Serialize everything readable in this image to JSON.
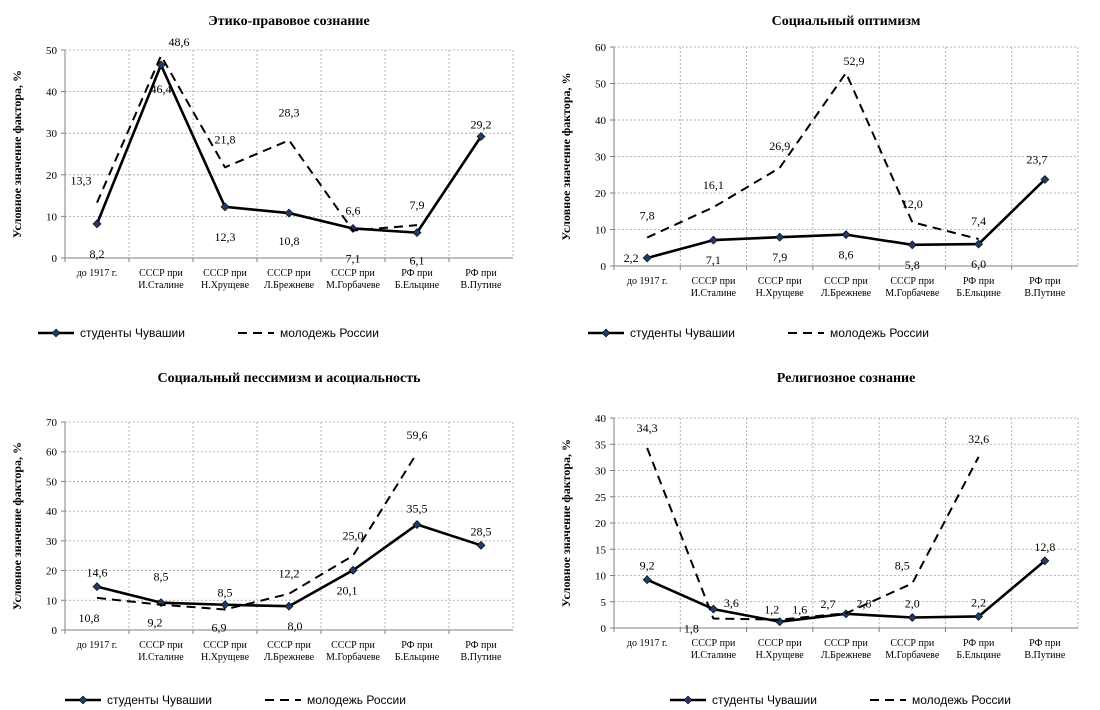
{
  "chart_data": [
    {
      "type": "line",
      "title": "Этико-правовое сознание",
      "ylabel": "Условное значение фактора, %",
      "ylim": [
        0,
        50
      ],
      "yticks": [
        0,
        10,
        20,
        30,
        40,
        50
      ],
      "categories": [
        "до 1917 г.",
        "СССР при И.Сталине",
        "СССР при Н.Хрущеве",
        "СССР при Л.Брежневе",
        "СССР при М.Горбачеве",
        "РФ при Б.Ельцине",
        "РФ при В.Путине"
      ],
      "series": [
        {
          "name": "студенты Чувашии",
          "style": "solid",
          "values": [
            8.2,
            46.4,
            12.3,
            10.8,
            7.1,
            6.1,
            29.2
          ],
          "labels": [
            "8,2",
            "46,4",
            "12,3",
            "10,8",
            "7,1",
            "6,1",
            "29,2"
          ]
        },
        {
          "name": "молодежь России",
          "style": "dashed",
          "values": [
            13.3,
            48.6,
            21.8,
            28.3,
            6.6,
            7.9,
            null
          ],
          "labels": [
            "13,3",
            "48,6",
            "21,8",
            "28,3",
            "6,6",
            "7,9",
            null
          ]
        }
      ],
      "grid": true,
      "legend": "bottom"
    },
    {
      "type": "line",
      "title": "Социальный оптимизм",
      "ylabel": "Условное значение фактора, %",
      "ylim": [
        0,
        60
      ],
      "yticks": [
        0,
        10,
        20,
        30,
        40,
        50,
        60
      ],
      "categories": [
        "до 1917 г.",
        "СССР при И.Сталине",
        "СССР при Н.Хрущеве",
        "СССР при Л.Брежневе",
        "СССР при М.Горбачеве",
        "РФ при Б.Ельцине",
        "РФ при В.Путине"
      ],
      "series": [
        {
          "name": "студенты Чувашии",
          "style": "solid",
          "values": [
            2.2,
            7.1,
            7.9,
            8.6,
            5.8,
            6.0,
            23.7
          ],
          "labels": [
            "2,2",
            "7,1",
            "7,9",
            "8,6",
            "5,8",
            "6,0",
            "23,7"
          ]
        },
        {
          "name": "молодежь России",
          "style": "dashed",
          "values": [
            7.8,
            16.1,
            26.9,
            52.9,
            12.0,
            7.4,
            null
          ],
          "labels": [
            "7,8",
            "16,1",
            "26,9",
            "52,9",
            "12,0",
            "7,4",
            null
          ]
        }
      ],
      "grid": true,
      "legend": "bottom"
    },
    {
      "type": "line",
      "title": "Социальный пессимизм и асоциальность",
      "ylabel": "Условное значение фактора, %",
      "ylim": [
        0,
        70
      ],
      "yticks": [
        0,
        10,
        20,
        30,
        40,
        50,
        60,
        70
      ],
      "categories": [
        "до 1917 г.",
        "СССР при И.Сталине",
        "СССР при Н.Хрущеве",
        "СССР при Л.Брежневе",
        "СССР при М.Горбачеве",
        "РФ при Б.Ельцине",
        "РФ при В.Путине"
      ],
      "series": [
        {
          "name": "студенты Чувашии",
          "style": "solid",
          "values": [
            14.6,
            9.2,
            8.5,
            8.0,
            20.1,
            35.5,
            28.5
          ],
          "labels": [
            "14,6",
            "9,2",
            "8,5",
            "8,0",
            "20,1",
            "35,5",
            "28,5"
          ]
        },
        {
          "name": "молодежь России",
          "style": "dashed",
          "values": [
            10.8,
            8.5,
            6.9,
            12.2,
            25.0,
            59.6,
            null
          ],
          "labels": [
            "10,8",
            "8,5",
            "6,9",
            "12,2",
            "25,0",
            "59,6",
            null
          ]
        }
      ],
      "grid": true,
      "legend": "bottom"
    },
    {
      "type": "line",
      "title": "Религиозное сознание",
      "ylabel": "Условное значение фактора, %",
      "ylim": [
        0,
        40
      ],
      "yticks": [
        0,
        5,
        10,
        15,
        20,
        25,
        30,
        35,
        40
      ],
      "categories": [
        "до 1917 г.",
        "СССР при И.Сталине",
        "СССР при Н.Хрущеве",
        "СССР при Л.Брежневе",
        "СССР при М.Горбачеве",
        "РФ при Б.Ельцине",
        "РФ при В.Путине"
      ],
      "series": [
        {
          "name": "студенты Чувашии",
          "style": "solid",
          "values": [
            9.2,
            3.6,
            1.2,
            2.7,
            2.0,
            2.2,
            12.8
          ],
          "labels": [
            "9,2",
            "3,6",
            "1,2",
            "2,7",
            "2,0",
            "2,2",
            "12,8"
          ]
        },
        {
          "name": "молодежь России",
          "style": "dashed",
          "values": [
            34.3,
            1.8,
            1.6,
            2.8,
            8.5,
            32.6,
            null
          ],
          "labels": [
            "34,3",
            "1,8",
            "1,6",
            "2,8",
            "8,5",
            "32,6",
            null
          ]
        }
      ],
      "grid": true,
      "legend": "bottom"
    }
  ]
}
